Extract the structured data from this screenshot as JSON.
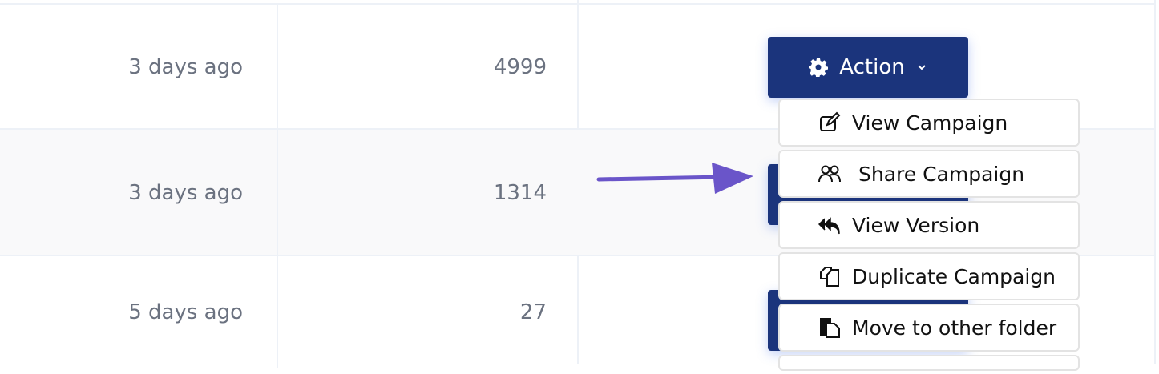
{
  "rows": [
    {
      "modified": "3 days ago",
      "count": "4999"
    },
    {
      "modified": "3 days ago",
      "count": "1314"
    },
    {
      "modified": "5 days ago",
      "count": "27"
    }
  ],
  "action_button": {
    "label": "Action",
    "icon": "gear-icon",
    "chevron": "⌄"
  },
  "menu": [
    {
      "label": "View Campaign",
      "icon": "edit-icon"
    },
    {
      "label": "Share Campaign",
      "icon": "users-icon"
    },
    {
      "label": "View Version",
      "icon": "reply-all-icon"
    },
    {
      "label": "Duplicate Campaign",
      "icon": "copy-icon"
    },
    {
      "label": "Move to other folder",
      "icon": "move-folder-icon"
    }
  ],
  "colors": {
    "button": "#1b347c",
    "arrow": "#6a55c9",
    "alt_row": "#f9f9fa"
  }
}
